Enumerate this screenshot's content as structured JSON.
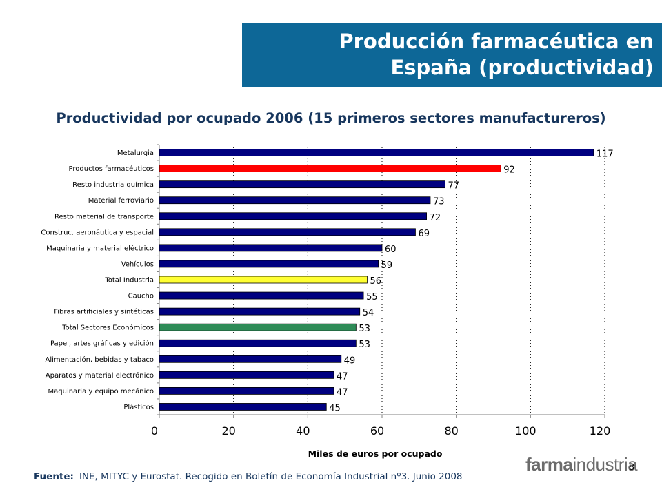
{
  "header": {
    "title_line1": "Producción farmacéutica en",
    "title_line2": "España (productividad)"
  },
  "colors": {
    "header_bg": "#0d6797",
    "default_bar": "#000080",
    "highlight_red": "#ff0000",
    "highlight_yellow": "#ffff33",
    "highlight_green": "#2e8b57"
  },
  "chart_data": {
    "type": "bar",
    "orientation": "horizontal",
    "title": "Productividad por ocupado 2006 (15 primeros sectores manufactureros)",
    "xlabel": "Miles de euros por ocupado",
    "ylabel": "",
    "xlim": [
      0,
      120
    ],
    "xticks": [
      "0",
      "20",
      "40",
      "60",
      "80",
      "100",
      "120"
    ],
    "grid": "vertical dotted",
    "categories": [
      "Metalurgia",
      "Productos farmacéuticos",
      "Resto industria química",
      "Material ferroviario",
      "Resto material de transporte",
      "Construc. aeronáutica y espacial",
      "Maquinaria y material eléctrico",
      "Vehículos",
      "Total Industria",
      "Caucho",
      "Fibras artificiales y sintéticas",
      "Total Sectores Económicos",
      "Papel, artes gráficas y edición",
      "Alimentación, bebidas y tabaco",
      "Aparatos y material electrónico",
      "Maquinaria y equipo mecánico",
      "Plásticos"
    ],
    "values": [
      117,
      92,
      77,
      73,
      72,
      69,
      60,
      59,
      56,
      55,
      54,
      53,
      53,
      49,
      47,
      47,
      45
    ],
    "labels": [
      "117",
      "92",
      "77",
      "73",
      "72",
      "69",
      "60",
      "59",
      "56",
      "55",
      "54",
      "53",
      "53",
      "49",
      "47",
      "47",
      "45"
    ],
    "bar_colors": [
      "#000080",
      "#ff0000",
      "#000080",
      "#000080",
      "#000080",
      "#000080",
      "#000080",
      "#000080",
      "#ffff33",
      "#000080",
      "#000080",
      "#2e8b57",
      "#000080",
      "#000080",
      "#000080",
      "#000080",
      "#000080"
    ]
  },
  "footer": {
    "source_label": "Fuente:",
    "source_text": "INE, MITYC y Eurostat. Recogido en Boletín de Economía Industrial nº3. Junio 2008",
    "logo_bold": "farma",
    "logo_thin": "industria",
    "page_number": "8"
  }
}
